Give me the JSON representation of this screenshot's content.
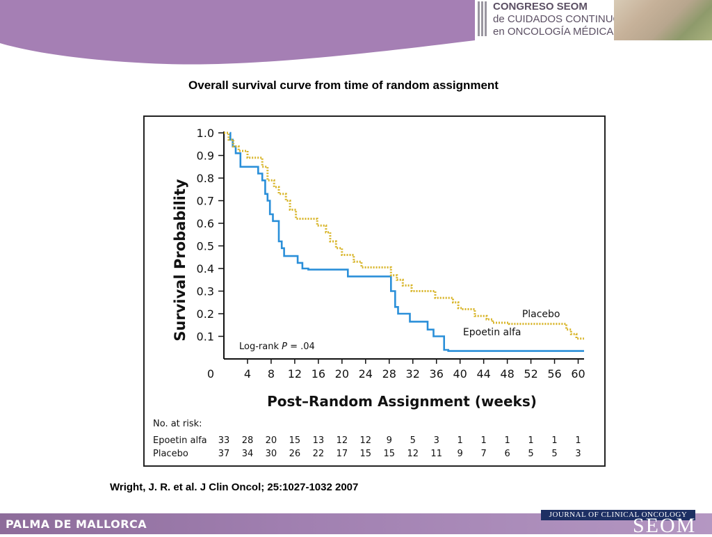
{
  "header": {
    "congress_lines": [
      "CONGRESO SEOM",
      "de CUIDADOS CONTINUOS",
      "en ONCOLOGÍA MÉDICA"
    ]
  },
  "slide": {
    "title": "Overall survival curve from time of random assignment",
    "citation": "Wright, J. R. et al. J Clin Oncol; 25:1027-1032 2007"
  },
  "footer": {
    "location": "PALMA DE MALLORCA",
    "journal": "JOURNAL OF CLINICAL ONCOLOGY",
    "logo": "SEOM"
  },
  "colors": {
    "purple_band": "#a57fb4",
    "epoetin": "#2a8fd9",
    "placebo": "#d8b52a",
    "journal_bg": "#1d2f63"
  },
  "chart_data": {
    "type": "line",
    "title": "",
    "xlabel": "Post–Random Assignment (weeks)",
    "ylabel": "Survival Probability",
    "xlim": [
      0,
      61
    ],
    "ylim": [
      0,
      1.0
    ],
    "x_ticks": [
      0,
      4,
      8,
      12,
      16,
      20,
      24,
      28,
      32,
      36,
      40,
      44,
      48,
      52,
      56,
      60
    ],
    "y_ticks": [
      0.1,
      0.2,
      0.3,
      0.4,
      0.5,
      0.6,
      0.7,
      0.8,
      0.9,
      1.0
    ],
    "zero_label": "0",
    "annotation": {
      "prefix": "Log-rank ",
      "italic": "P",
      "suffix": " = .04"
    },
    "series": [
      {
        "name": "Epoetin alfa",
        "style": "solid",
        "x": [
          1,
          1.1,
          1.5,
          2.0,
          2.8,
          5.8,
          6.5,
          7.0,
          7.4,
          7.8,
          8.3,
          9.3,
          9.8,
          10.2,
          12.5,
          13.3,
          14.3,
          21.0,
          28.3,
          29.0,
          29.5,
          31.5,
          34.5,
          35.5,
          37.3,
          38.0,
          40.0,
          61.0
        ],
        "y": [
          1.0,
          0.97,
          0.94,
          0.91,
          0.85,
          0.82,
          0.79,
          0.73,
          0.7,
          0.64,
          0.61,
          0.52,
          0.49,
          0.455,
          0.425,
          0.4,
          0.395,
          0.365,
          0.3,
          0.23,
          0.2,
          0.165,
          0.13,
          0.1,
          0.04,
          0.035,
          0.035,
          0.035
        ]
      },
      {
        "name": "Placebo",
        "style": "dotted",
        "x": [
          0,
          0.8,
          1.6,
          2.5,
          4.0,
          6.5,
          7.4,
          8.5,
          9.3,
          10.5,
          11.2,
          12.2,
          15.8,
          17.3,
          18.0,
          19.0,
          20.0,
          22.0,
          23.3,
          28.3,
          29.3,
          30.3,
          31.8,
          35.8,
          38.8,
          39.7,
          40.3,
          42.5,
          44.5,
          45.5,
          48.3,
          58.0,
          58.8,
          59.7,
          61.0
        ],
        "y": [
          1.0,
          0.97,
          0.94,
          0.92,
          0.89,
          0.85,
          0.79,
          0.76,
          0.73,
          0.7,
          0.66,
          0.62,
          0.59,
          0.56,
          0.52,
          0.49,
          0.46,
          0.43,
          0.405,
          0.37,
          0.35,
          0.325,
          0.3,
          0.27,
          0.25,
          0.225,
          0.22,
          0.19,
          0.175,
          0.16,
          0.155,
          0.13,
          0.11,
          0.09,
          0.09
        ]
      }
    ],
    "series_labels": [
      {
        "name": "Placebo",
        "x": 50.5,
        "y": 0.2
      },
      {
        "name": "Epoetin alfa",
        "x": 40.5,
        "y": 0.12
      }
    ],
    "risk_table": {
      "title": "No. at risk:",
      "rows": [
        {
          "name": "Epoetin alfa",
          "values": [
            33,
            28,
            20,
            15,
            13,
            12,
            12,
            9,
            5,
            3,
            1,
            1,
            1,
            1,
            1,
            1
          ]
        },
        {
          "name": "Placebo",
          "values": [
            37,
            34,
            30,
            26,
            22,
            17,
            15,
            15,
            12,
            11,
            9,
            7,
            6,
            5,
            5,
            3
          ]
        }
      ]
    }
  }
}
